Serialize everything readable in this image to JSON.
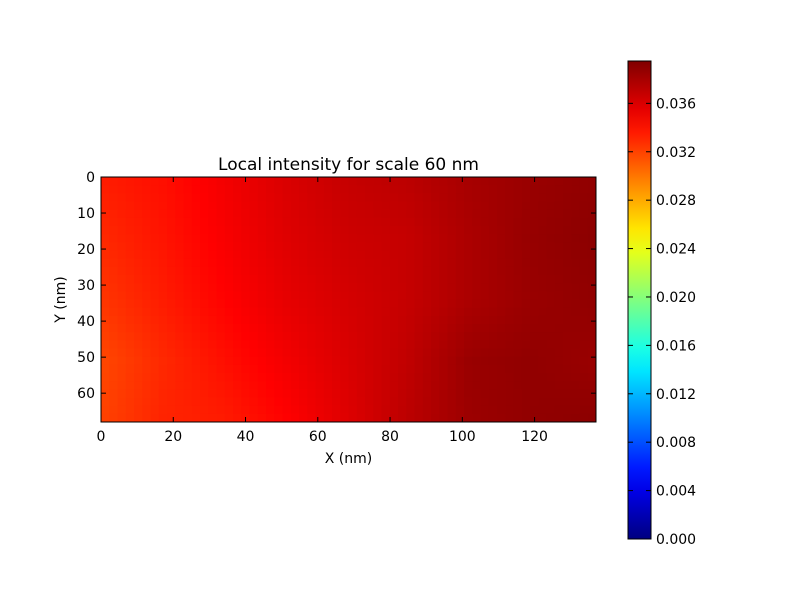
{
  "chart_data": {
    "type": "heatmap",
    "title": "Local intensity for scale 60 nm",
    "xlabel": "X (nm)",
    "ylabel": "Y (nm)",
    "xlim": [
      0,
      137
    ],
    "ylim": [
      68,
      0
    ],
    "x_ticks": [
      0,
      20,
      40,
      60,
      80,
      100,
      120
    ],
    "y_ticks": [
      0,
      10,
      20,
      30,
      40,
      50,
      60
    ],
    "colormap": "jet",
    "colorbar": {
      "range": [
        0,
        0.0395
      ],
      "ticks": [
        "0.000",
        "0.004",
        "0.008",
        "0.012",
        "0.016",
        "0.020",
        "0.024",
        "0.028",
        "0.032",
        "0.036"
      ]
    },
    "grid_x": [
      0,
      17,
      34,
      51,
      68,
      85,
      102,
      119,
      136
    ],
    "grid_y": [
      0,
      17,
      34,
      51,
      68
    ],
    "values": [
      [
        0.0335,
        0.034,
        0.035,
        0.036,
        0.0368,
        0.0372,
        0.038,
        0.0385,
        0.0388
      ],
      [
        0.033,
        0.0338,
        0.0348,
        0.0358,
        0.0365,
        0.0368,
        0.0378,
        0.0386,
        0.039
      ],
      [
        0.0325,
        0.0335,
        0.0345,
        0.0355,
        0.0362,
        0.0368,
        0.0378,
        0.0385,
        0.0388
      ],
      [
        0.0318,
        0.033,
        0.034,
        0.035,
        0.036,
        0.037,
        0.0385,
        0.0388,
        0.0385
      ],
      [
        0.032,
        0.0332,
        0.0335,
        0.0345,
        0.0358,
        0.0372,
        0.0384,
        0.0388,
        0.039
      ]
    ]
  }
}
